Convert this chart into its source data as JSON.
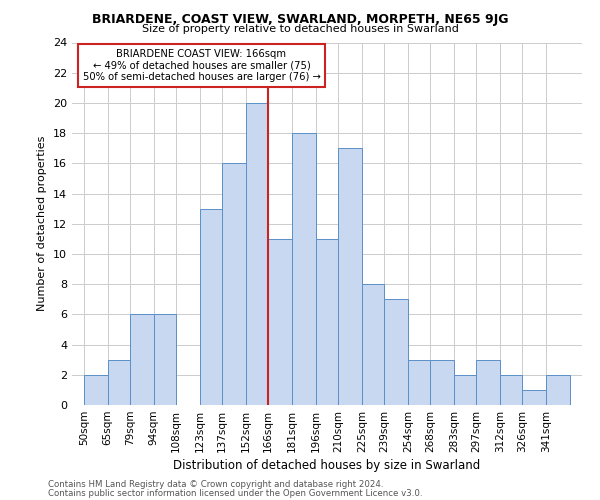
{
  "title": "BRIARDENE, COAST VIEW, SWARLAND, MORPETH, NE65 9JG",
  "subtitle": "Size of property relative to detached houses in Swarland",
  "xlabel": "Distribution of detached houses by size in Swarland",
  "ylabel": "Number of detached properties",
  "footnote1": "Contains HM Land Registry data © Crown copyright and database right 2024.",
  "footnote2": "Contains public sector information licensed under the Open Government Licence v3.0.",
  "bin_edges": [
    50,
    65,
    79,
    94,
    108,
    123,
    137,
    152,
    166,
    181,
    196,
    210,
    225,
    239,
    254,
    268,
    283,
    297,
    312,
    326,
    341,
    356
  ],
  "bin_labels": [
    "50sqm",
    "65sqm",
    "79sqm",
    "94sqm",
    "108sqm",
    "123sqm",
    "137sqm",
    "152sqm",
    "166sqm",
    "181sqm",
    "196sqm",
    "210sqm",
    "225sqm",
    "239sqm",
    "254sqm",
    "268sqm",
    "283sqm",
    "297sqm",
    "312sqm",
    "326sqm",
    "341sqm"
  ],
  "counts": [
    2,
    3,
    6,
    6,
    0,
    13,
    16,
    20,
    11,
    18,
    11,
    17,
    8,
    7,
    3,
    3,
    2,
    3,
    2,
    1,
    2
  ],
  "bar_color": "#c8d8f0",
  "bar_edge_color": "#5a90c8",
  "reference_line_x": 166,
  "reference_line_color": "#cc2222",
  "annotation_title": "BRIARDENE COAST VIEW: 166sqm",
  "annotation_line1": "← 49% of detached houses are smaller (75)",
  "annotation_line2": "50% of semi-detached houses are larger (76) →",
  "annotation_box_color": "#ffffff",
  "annotation_box_edgecolor": "#cc2222",
  "ylim": [
    0,
    24
  ],
  "yticks": [
    0,
    2,
    4,
    6,
    8,
    10,
    12,
    14,
    16,
    18,
    20,
    22,
    24
  ],
  "background_color": "#ffffff",
  "grid_color": "#cccccc"
}
